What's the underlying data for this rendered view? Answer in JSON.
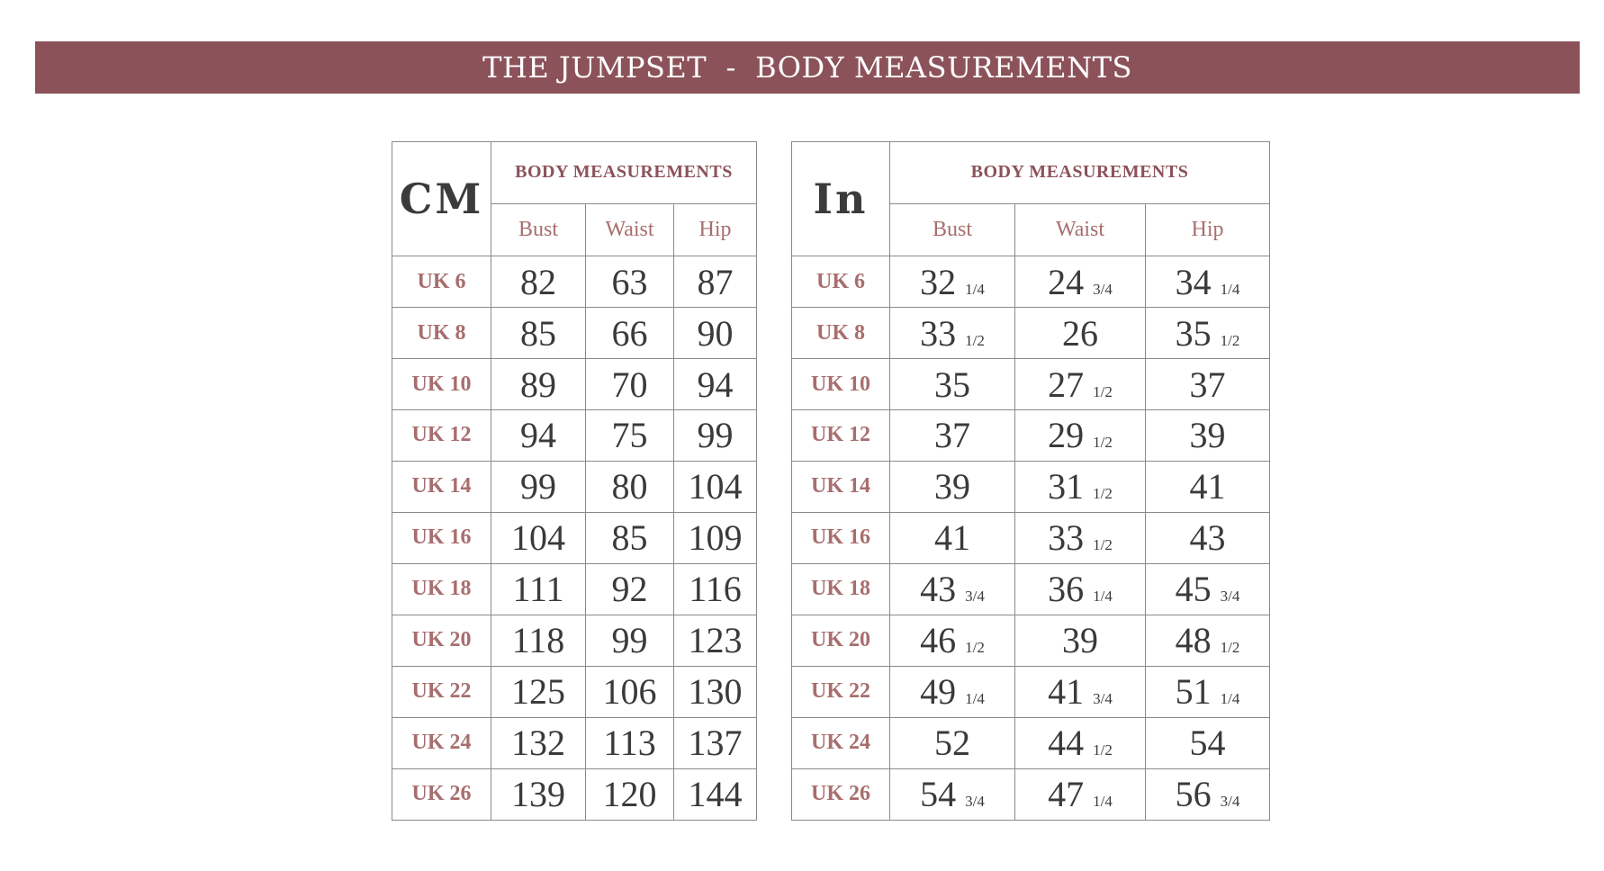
{
  "banner": {
    "title": "THE JUMPSET  -  BODY MEASUREMENTS"
  },
  "cm": {
    "unit": "CM",
    "group": "BODY MEASUREMENTS",
    "columns": [
      "Bust",
      "Waist",
      "Hip"
    ],
    "rows": [
      {
        "size": "UK 6",
        "bust": "82",
        "waist": "63",
        "hip": "87"
      },
      {
        "size": "UK 8",
        "bust": "85",
        "waist": "66",
        "hip": "90"
      },
      {
        "size": "UK 10",
        "bust": "89",
        "waist": "70",
        "hip": "94"
      },
      {
        "size": "UK 12",
        "bust": "94",
        "waist": "75",
        "hip": "99"
      },
      {
        "size": "UK 14",
        "bust": "99",
        "waist": "80",
        "hip": "104"
      },
      {
        "size": "UK 16",
        "bust": "104",
        "waist": "85",
        "hip": "109"
      },
      {
        "size": "UK 18",
        "bust": "111",
        "waist": "92",
        "hip": "116"
      },
      {
        "size": "UK 20",
        "bust": "118",
        "waist": "99",
        "hip": "123"
      },
      {
        "size": "UK 22",
        "bust": "125",
        "waist": "106",
        "hip": "130"
      },
      {
        "size": "UK 24",
        "bust": "132",
        "waist": "113",
        "hip": "137"
      },
      {
        "size": "UK 26",
        "bust": "139",
        "waist": "120",
        "hip": "144"
      }
    ]
  },
  "inches": {
    "unit": "In",
    "group": "BODY MEASUREMENTS",
    "columns": [
      "Bust",
      "Waist",
      "Hip"
    ],
    "rows": [
      {
        "size": "UK 6",
        "bust": [
          "32",
          "1/4"
        ],
        "waist": [
          "24",
          "3/4"
        ],
        "hip": [
          "34",
          "1/4"
        ]
      },
      {
        "size": "UK 8",
        "bust": [
          "33",
          "1/2"
        ],
        "waist": [
          "26",
          ""
        ],
        "hip": [
          "35",
          "1/2"
        ]
      },
      {
        "size": "UK 10",
        "bust": [
          "35",
          ""
        ],
        "waist": [
          "27",
          "1/2"
        ],
        "hip": [
          "37",
          ""
        ]
      },
      {
        "size": "UK 12",
        "bust": [
          "37",
          ""
        ],
        "waist": [
          "29",
          "1/2"
        ],
        "hip": [
          "39",
          ""
        ]
      },
      {
        "size": "UK 14",
        "bust": [
          "39",
          ""
        ],
        "waist": [
          "31",
          "1/2"
        ],
        "hip": [
          "41",
          ""
        ]
      },
      {
        "size": "UK 16",
        "bust": [
          "41",
          ""
        ],
        "waist": [
          "33",
          "1/2"
        ],
        "hip": [
          "43",
          ""
        ]
      },
      {
        "size": "UK 18",
        "bust": [
          "43",
          "3/4"
        ],
        "waist": [
          "36",
          "1/4"
        ],
        "hip": [
          "45",
          "3/4"
        ]
      },
      {
        "size": "UK 20",
        "bust": [
          "46",
          "1/2"
        ],
        "waist": [
          "39",
          ""
        ],
        "hip": [
          "48",
          "1/2"
        ]
      },
      {
        "size": "UK 22",
        "bust": [
          "49",
          "1/4"
        ],
        "waist": [
          "41",
          "3/4"
        ],
        "hip": [
          "51",
          "1/4"
        ]
      },
      {
        "size": "UK 24",
        "bust": [
          "52",
          ""
        ],
        "waist": [
          "44",
          "1/2"
        ],
        "hip": [
          "54",
          ""
        ]
      },
      {
        "size": "UK 26",
        "bust": [
          "54",
          "3/4"
        ],
        "waist": [
          "47",
          "1/4"
        ],
        "hip": [
          "56",
          "3/4"
        ]
      }
    ]
  },
  "colors": {
    "banner": "#8c525a",
    "accent": "#a86e6e",
    "text": "#3a3a3a",
    "border": "#8a8a8a"
  }
}
